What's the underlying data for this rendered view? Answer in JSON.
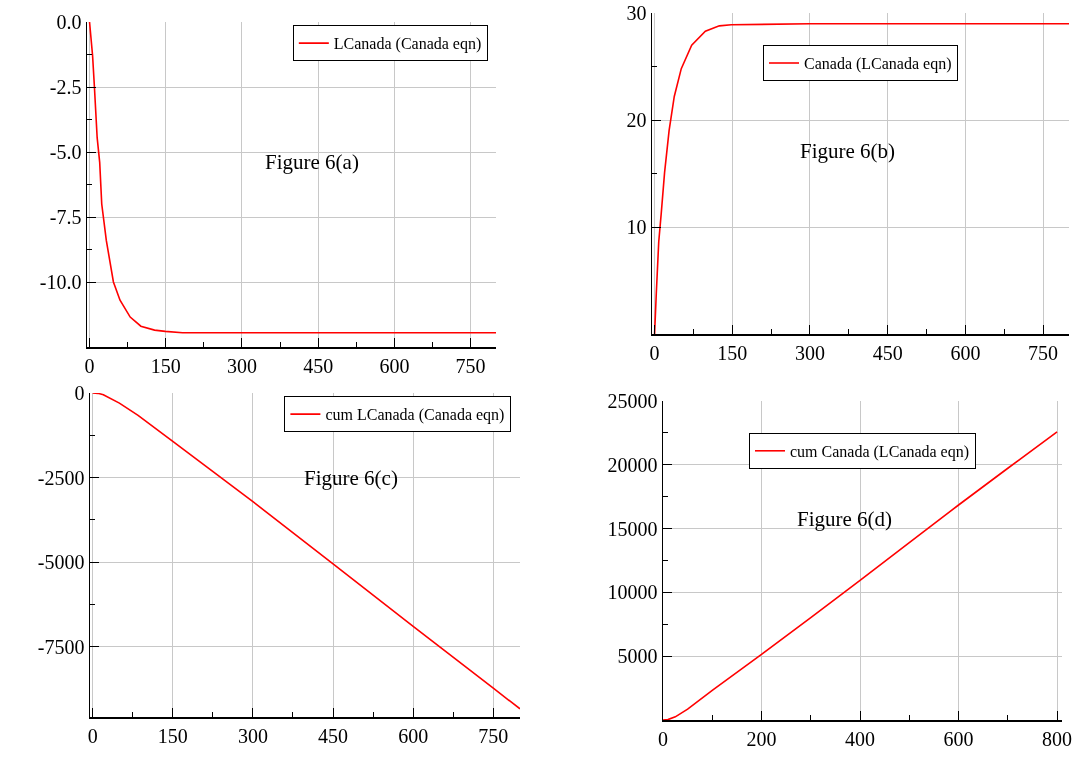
{
  "chart_data": [
    {
      "type": "line",
      "x": [
        0,
        6,
        9.6,
        15,
        20,
        24,
        33,
        47,
        60,
        80,
        101,
        128,
        149,
        183,
        300,
        450,
        600,
        800
      ],
      "series": [
        {
          "name": "LCanada (Canada eqn)",
          "color": "#ff0000",
          "values": [
            0,
            -1.3,
            -2.5,
            -4.45,
            -5.4,
            -7.0,
            -8.4,
            -10.0,
            -10.7,
            -11.35,
            -11.7,
            -11.85,
            -11.9,
            -11.95,
            -11.95,
            -11.95,
            -11.95,
            -11.95
          ]
        }
      ],
      "annotations": [
        "Figure 6(a)"
      ],
      "xlim": [
        -5,
        800
      ],
      "xticks": [
        0,
        150,
        300,
        450,
        600,
        750
      ],
      "ylim": [
        -12.5,
        0
      ],
      "yticks": [
        {
          "value": 0,
          "label": "0.0"
        },
        -2.5,
        {
          "value": -5,
          "label": "-5.0"
        },
        -7.5,
        {
          "value": -10,
          "label": "-10.0"
        }
      ],
      "grid": true,
      "legend": "top right"
    },
    {
      "type": "line",
      "x": [
        0,
        3.3,
        8,
        12.7,
        19.3,
        28,
        38,
        51.5,
        71.6,
        98,
        125,
        148,
        300,
        450,
        600,
        800
      ],
      "series": [
        {
          "name": "Canada (LCanada eqn)",
          "color": "#ff0000",
          "values": [
            0,
            3.8,
            8.6,
            11.2,
            15.1,
            19.0,
            22.2,
            24.8,
            27.0,
            28.3,
            28.8,
            28.9,
            29,
            29,
            29,
            29
          ]
        }
      ],
      "annotations": [
        "Figure 6(b)"
      ],
      "xlim": [
        -5,
        800
      ],
      "xticks": [
        0,
        150,
        300,
        450,
        600,
        750
      ],
      "ylim": [
        0,
        30
      ],
      "yticks": [
        10,
        20,
        30
      ],
      "grid": true,
      "legend": "top"
    },
    {
      "type": "line",
      "x": [
        0,
        10,
        20,
        50,
        85,
        150,
        300,
        450,
        600,
        750,
        800
      ],
      "series": [
        {
          "name": "cum LCanada (Canada eqn)",
          "color": "#ff0000",
          "values": [
            0,
            -10,
            -50,
            -300,
            -660,
            -1430,
            -3210,
            -5050,
            -6890,
            -8720,
            -9330
          ]
        }
      ],
      "annotations": [
        "Figure 6(c)"
      ],
      "xlim": [
        -5,
        800
      ],
      "xticks": [
        0,
        150,
        300,
        450,
        600,
        750
      ],
      "ylim": [
        -9570,
        0
      ],
      "yticks": [
        0,
        -2500,
        -5000,
        -7500
      ],
      "grid": true,
      "legend": "top right"
    },
    {
      "type": "line",
      "x": [
        0,
        10,
        25,
        50,
        100,
        200,
        300,
        400,
        500,
        600,
        700,
        800
      ],
      "series": [
        {
          "name": "cum Canada (LCanada eqn)",
          "color": "#ff0000",
          "values": [
            0,
            30,
            250,
            850,
            2330,
            5150,
            8030,
            10940,
            13900,
            16850,
            19730,
            22580
          ]
        }
      ],
      "annotations": [
        "Figure 6(d)"
      ],
      "xlim": [
        0,
        810
      ],
      "xticks": [
        0,
        200,
        400,
        600,
        800
      ],
      "ylim": [
        0,
        25000
      ],
      "yticks": [
        5000,
        10000,
        15000,
        20000,
        25000
      ],
      "grid": true,
      "legend": "top"
    }
  ]
}
